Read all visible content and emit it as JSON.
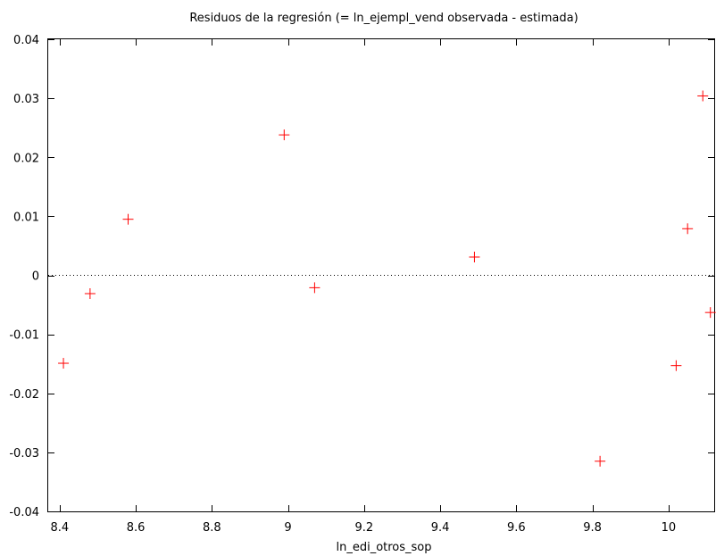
{
  "chart_data": {
    "type": "scatter",
    "title": "Residuos de la regresión (= ln_ejempl_vend observada - estimada)",
    "xlabel": "ln_edi_otros_sop",
    "ylabel": "",
    "xlim": [
      8.37,
      10.12
    ],
    "ylim": [
      -0.04,
      0.04
    ],
    "x_ticks": [
      8.4,
      8.6,
      8.8,
      9,
      9.2,
      9.4,
      9.6,
      9.8,
      10
    ],
    "x_tick_labels": [
      "8.4",
      "8.6",
      "8.8",
      "9",
      "9.2",
      "9.4",
      "9.6",
      "9.8",
      "10"
    ],
    "y_ticks": [
      0.04,
      0.03,
      0.02,
      0.01,
      0,
      -0.01,
      -0.02,
      -0.03,
      -0.04
    ],
    "y_tick_labels": [
      "0.04",
      "0.03",
      "0.02",
      "0.01",
      "0",
      "-0.01",
      "-0.02",
      "-0.03",
      "-0.04"
    ],
    "grid": false,
    "zero_reference_line": true,
    "marker": "plus",
    "marker_color": "#ff0000",
    "points": [
      {
        "x": 8.41,
        "y": -0.0149
      },
      {
        "x": 8.48,
        "y": -0.0031
      },
      {
        "x": 8.58,
        "y": 0.0095
      },
      {
        "x": 8.99,
        "y": 0.0238
      },
      {
        "x": 9.07,
        "y": -0.0021
      },
      {
        "x": 9.49,
        "y": 0.0031
      },
      {
        "x": 9.82,
        "y": -0.0315
      },
      {
        "x": 10.02,
        "y": -0.0153
      },
      {
        "x": 10.05,
        "y": 0.0079
      },
      {
        "x": 10.09,
        "y": 0.0304
      },
      {
        "x": 10.11,
        "y": -0.0063
      }
    ]
  }
}
